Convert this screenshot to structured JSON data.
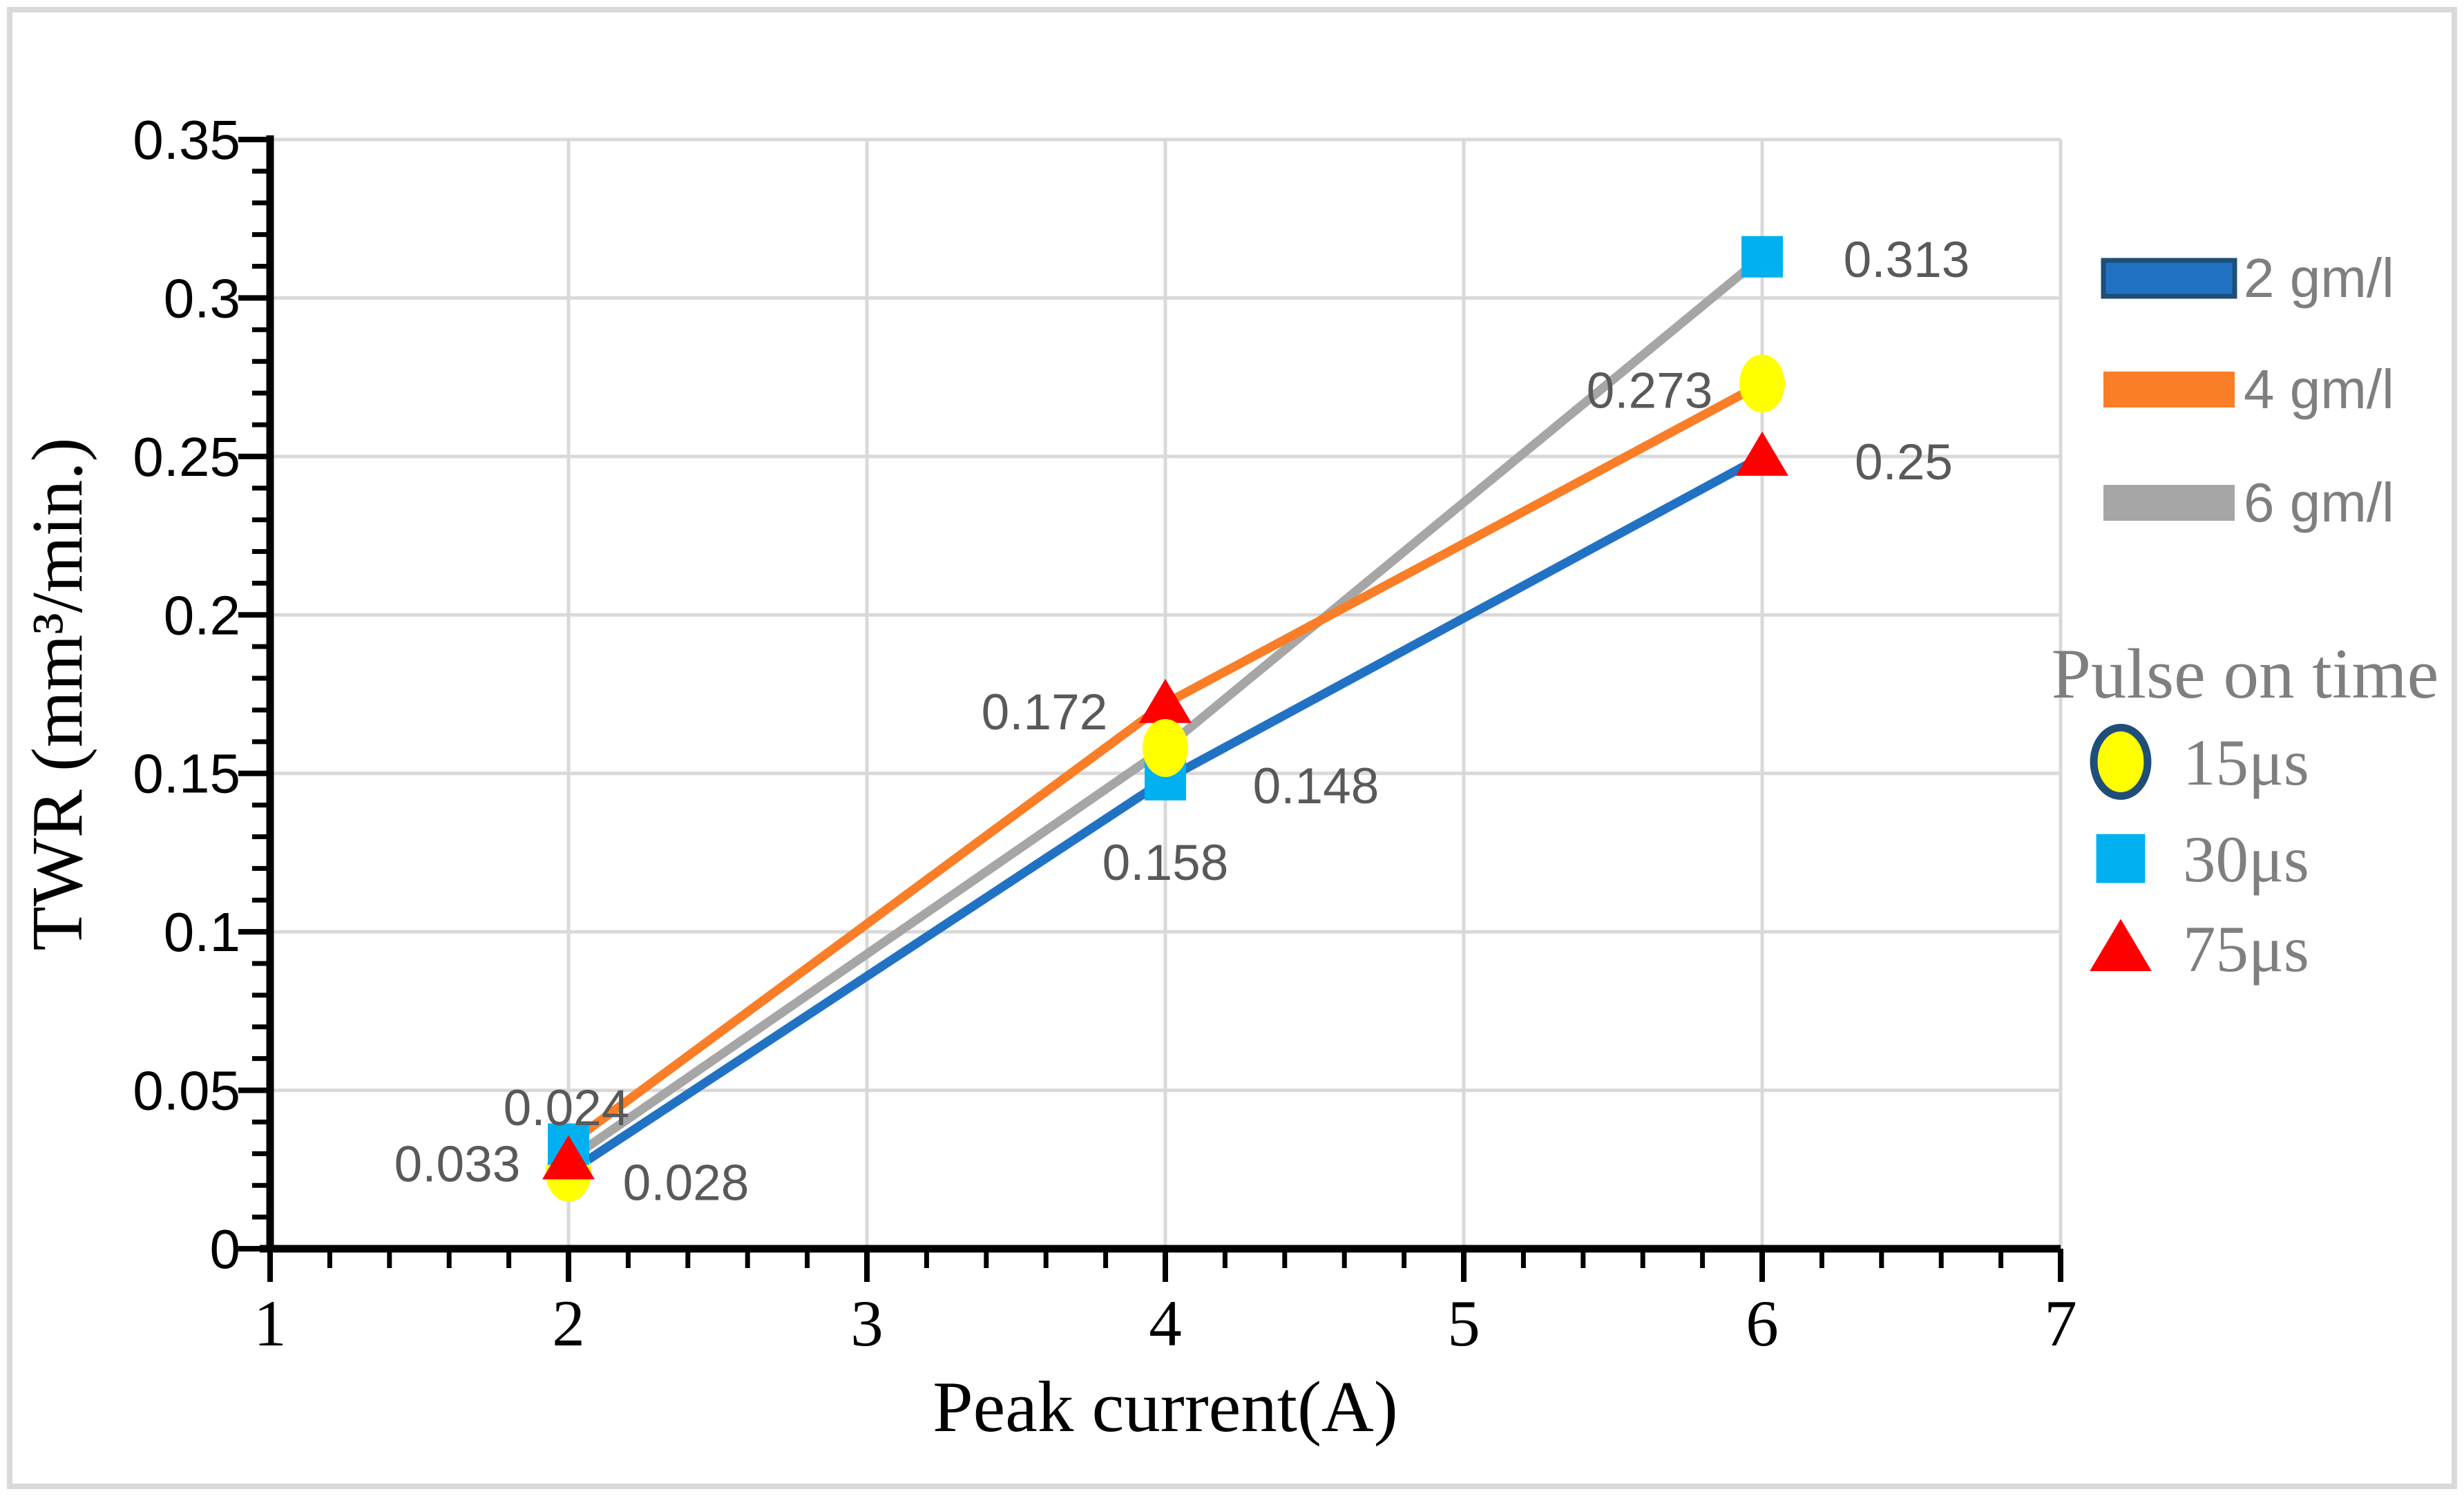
{
  "figure": {
    "background": "#FFFFFF",
    "frame_color": "#D9D9D9"
  },
  "chart_data": {
    "type": "line",
    "title": "",
    "xlabel": "Peak current(A)",
    "ylabel": "TWR (mm³/min.)",
    "xlim": [
      1,
      7
    ],
    "ylim": [
      0,
      0.35
    ],
    "x_tick_values": [
      1,
      2,
      3,
      4,
      5,
      6,
      7
    ],
    "x_tick_labels": [
      "1",
      "2",
      "3",
      "4",
      "5",
      "6",
      "7"
    ],
    "x_minor_step": 0.2,
    "y_tick_values": [
      0,
      0.05,
      0.1,
      0.15,
      0.2,
      0.25,
      0.3,
      0.35
    ],
    "y_tick_labels": [
      "0",
      "0.05",
      "0.1",
      "0.15",
      "0.2",
      "0.25",
      "0.3",
      "0.35"
    ],
    "y_minor_step": 0.01,
    "grid": true,
    "grid_color": "#D9D9D9",
    "axis_color": "#000000",
    "data_label_color": "#595959",
    "x": [
      2,
      4,
      6
    ],
    "series": [
      {
        "name": "2 gm/l",
        "color": "#2272C3",
        "values": [
          0.024,
          0.148,
          0.25
        ],
        "point_markers": [
          "circle",
          "square",
          "triangle"
        ],
        "point_labels": [
          "0.024",
          "0.148",
          "0.25"
        ],
        "label_offsets": [
          [
            -3,
            -95
          ],
          [
            218,
            8
          ],
          [
            205,
            7
          ]
        ]
      },
      {
        "name": "4 gm/l",
        "color": "#F97E27",
        "values": [
          0.033,
          0.172,
          0.273
        ],
        "point_markers": [
          "square",
          "triangle",
          "circle"
        ],
        "point_labels": [
          "0.033",
          "0.172",
          "0.273"
        ],
        "label_offsets": [
          [
            -161,
            28
          ],
          [
            -175,
            11
          ],
          [
            -163,
            9
          ]
        ]
      },
      {
        "name": "6 gm/l",
        "color": "#A6A6A6",
        "values": [
          0.028,
          0.158,
          0.313
        ],
        "point_markers": [
          "triangle",
          "circle",
          "square"
        ],
        "point_labels": [
          "0.028",
          "0.158",
          "0.313"
        ],
        "label_offsets": [
          [
            170,
            32
          ],
          [
            0,
            165
          ],
          [
            209,
            3
          ]
        ]
      }
    ],
    "line_draw_order": [
      0,
      2,
      1
    ],
    "marker_styles": {
      "circle": {
        "fill": "#FFFF00",
        "legend_ring": "#1F4E79"
      },
      "square": {
        "fill": "#00B0F0"
      },
      "triangle": {
        "fill": "#FF0000"
      }
    }
  },
  "legend_concentration": {
    "text_color": "#7F7F7F",
    "items": [
      {
        "label": "2 gm/l",
        "fill": "#2272C3",
        "border": "#1F4E79"
      },
      {
        "label": "4 gm/l",
        "fill": "#F97E27",
        "border": ""
      },
      {
        "label": "6 gm/l",
        "fill": "#A6A6A6",
        "border": ""
      }
    ]
  },
  "legend_pulse": {
    "title": "Pulse on time",
    "text_color": "#7F7F7F",
    "items": [
      {
        "label": "15μs",
        "marker": "circle"
      },
      {
        "label": "30μs",
        "marker": "square"
      },
      {
        "label": "75μs",
        "marker": "triangle"
      }
    ]
  }
}
